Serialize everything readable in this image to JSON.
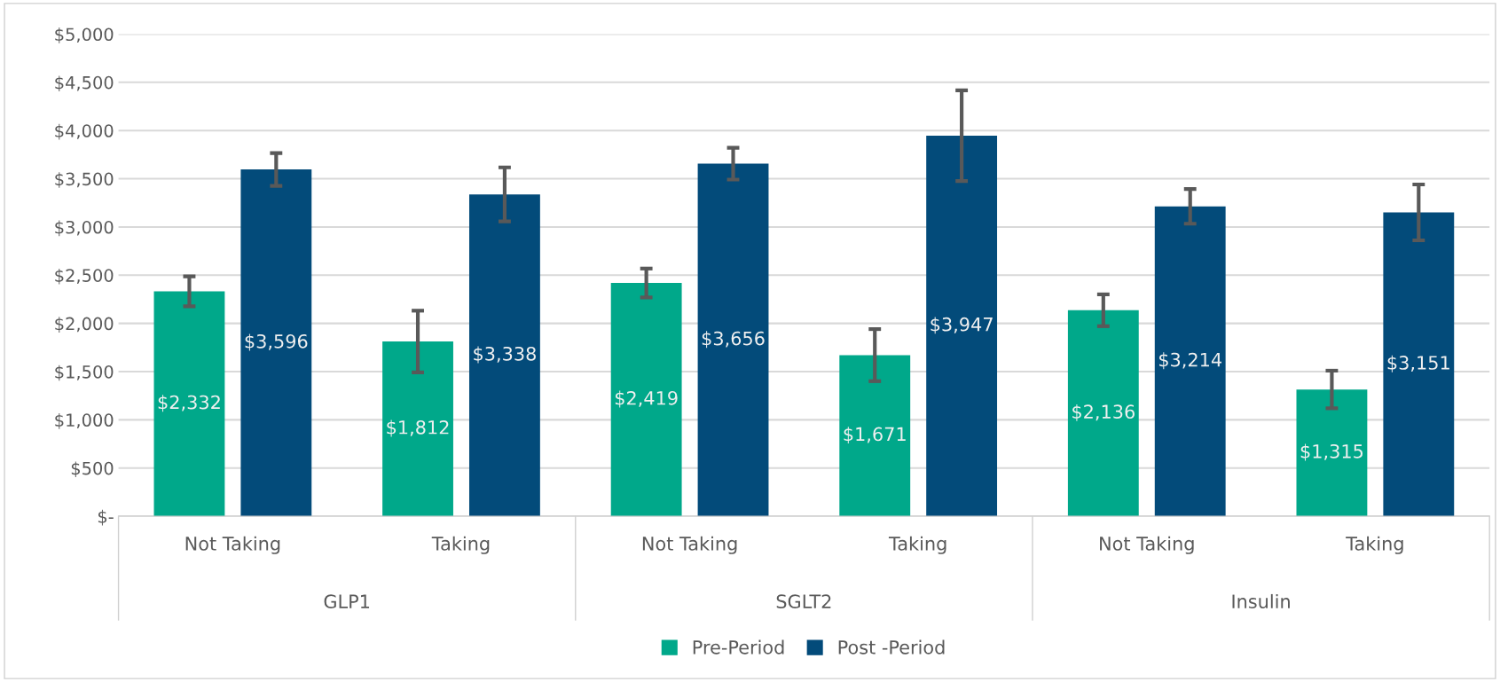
{
  "chart_data": {
    "type": "bar",
    "categories": [
      "Not Taking",
      "Taking",
      "Not Taking",
      "Taking",
      "Not Taking",
      "Taking"
    ],
    "annotations": [
      "GLP1",
      "SGLT2",
      "Insulin"
    ],
    "series": [
      {
        "name": "Pre-Period",
        "color": "#00a88a",
        "values": [
          2332,
          1812,
          2419,
          1671,
          2136,
          1315
        ],
        "value_labels": [
          "$2,332",
          "$1,812",
          "$2,419",
          "$1,671",
          "$2,136",
          "$1,315"
        ],
        "errors": [
          155,
          320,
          150,
          270,
          165,
          195
        ]
      },
      {
        "name": "Post -Period",
        "color": "#034b7a",
        "values": [
          3596,
          3338,
          3656,
          3947,
          3214,
          3151
        ],
        "value_labels": [
          "$3,596",
          "$3,338",
          "$3,656",
          "$3,947",
          "$3,214",
          "$3,151"
        ],
        "errors": [
          170,
          280,
          165,
          470,
          180,
          290
        ]
      }
    ],
    "ylim": [
      0,
      5000
    ],
    "yticks": [
      {
        "value": 0,
        "label": "$-"
      },
      {
        "value": 500,
        "label": "$500"
      },
      {
        "value": 1000,
        "label": "$1,000"
      },
      {
        "value": 1500,
        "label": "$1,500"
      },
      {
        "value": 2000,
        "label": "$2,000"
      },
      {
        "value": 2500,
        "label": "$2,500"
      },
      {
        "value": 3000,
        "label": "$3,000"
      },
      {
        "value": 3500,
        "label": "$3,500"
      },
      {
        "value": 4000,
        "label": "$4,000"
      },
      {
        "value": 4500,
        "label": "$4,500"
      },
      {
        "value": 5000,
        "label": "$5,000"
      }
    ],
    "grid": "y",
    "legend": "bottom"
  }
}
